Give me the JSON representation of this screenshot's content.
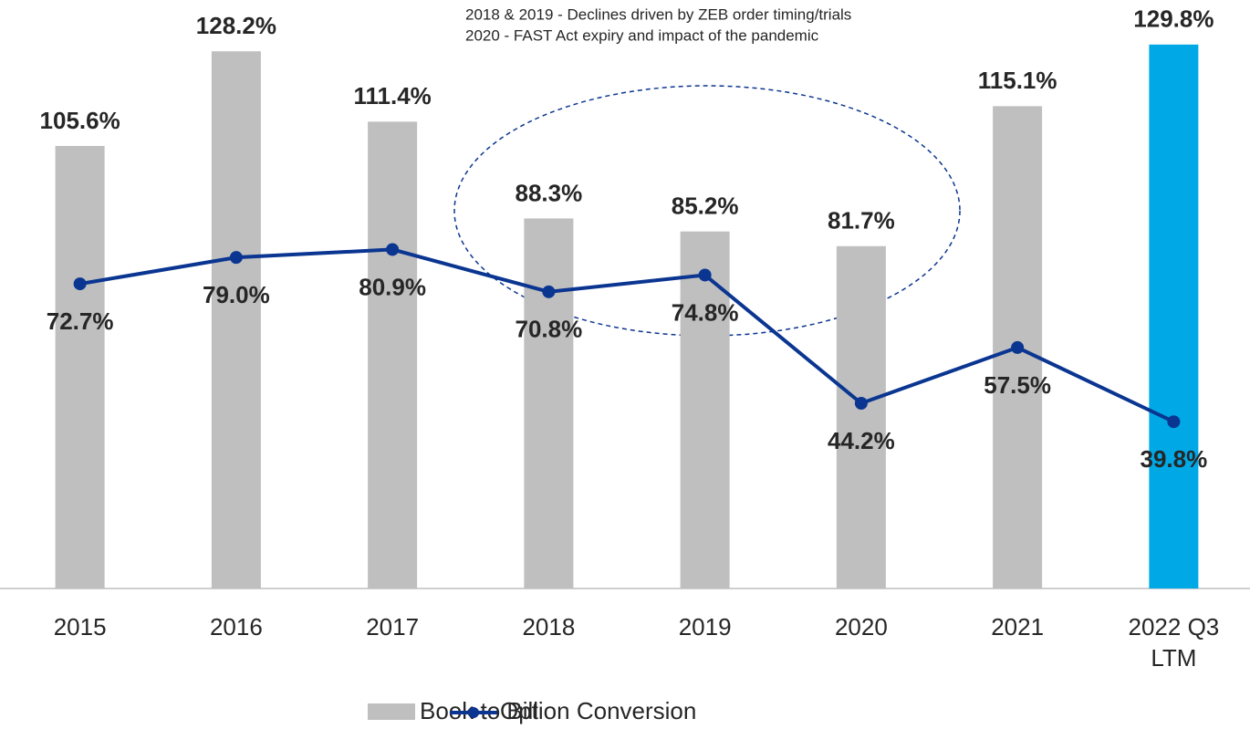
{
  "chart_data": {
    "type": "bar-line",
    "annotations": [
      "2018 & 2019 - Declines driven by ZEB order timing/trials",
      "2020 - FAST Act expiry and impact of the pandemic"
    ],
    "categories": [
      "2015",
      "2016",
      "2017",
      "2018",
      "2019",
      "2020",
      "2021",
      "2022 Q3 LTM"
    ],
    "series": [
      {
        "name": "Book to Bill",
        "type": "bar",
        "color": "#bfbfbf",
        "colors": [
          "#bfbfbf",
          "#bfbfbf",
          "#bfbfbf",
          "#bfbfbf",
          "#bfbfbf",
          "#bfbfbf",
          "#bfbfbf",
          "#00a9e6"
        ],
        "values": [
          105.6,
          128.2,
          111.4,
          88.3,
          85.2,
          81.7,
          115.1,
          129.8
        ],
        "value_labels": [
          "105.6%",
          "128.2%",
          "111.4%",
          "88.3%",
          "85.2%",
          "81.7%",
          "115.1%",
          "129.8%"
        ]
      },
      {
        "name": "Option Conversion",
        "type": "line",
        "color": "#0a3591",
        "values": [
          72.7,
          79.0,
          80.9,
          70.8,
          74.8,
          44.2,
          57.5,
          39.8
        ],
        "value_labels": [
          "72.7%",
          "79.0%",
          "80.9%",
          "70.8%",
          "74.8%",
          "44.2%",
          "57.5%",
          "39.8%"
        ]
      }
    ],
    "ylim": [
      0,
      140
    ],
    "legend": "bottom"
  }
}
